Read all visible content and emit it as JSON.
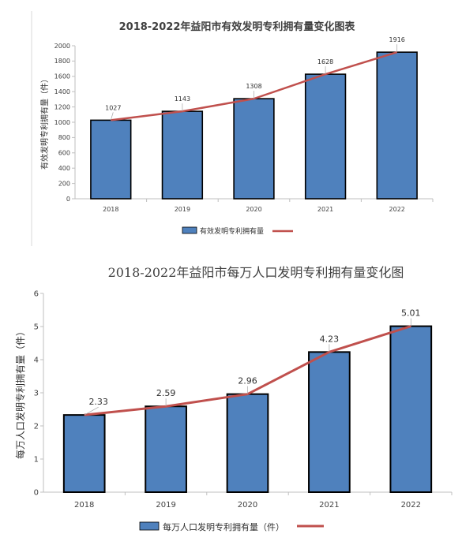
{
  "colors": {
    "bar": "#4f81bd",
    "bar_stroke": "#000000",
    "line": "#c0504d",
    "axis": "#bfbfbf"
  },
  "chart_data": [
    {
      "type": "bar",
      "title": "2018-2022年益阳市有效发明专利拥有量变化图表",
      "ylabel": "有效发明专利拥有量（件）",
      "xlabel": "",
      "categories": [
        "2018",
        "2019",
        "2020",
        "2021",
        "2022"
      ],
      "ylim": [
        0,
        2000
      ],
      "yticks": [
        0,
        200,
        400,
        600,
        800,
        1000,
        1200,
        1400,
        1600,
        1800,
        2000
      ],
      "series": [
        {
          "name": "有效发明专利拥有量",
          "type": "bar",
          "values": [
            1027,
            1143,
            1308,
            1628,
            1916
          ]
        },
        {
          "type": "line",
          "values": [
            1027,
            1143,
            1308,
            1628,
            1916
          ]
        }
      ],
      "data_labels": [
        "1027",
        "1143",
        "1308",
        "1628",
        "1916"
      ],
      "legend": "bottom",
      "grid": false
    },
    {
      "type": "bar",
      "title": "2018-2022年益阳市每万人口发明专利拥有量变化图",
      "ylabel": "每万人口发明专利拥有量（件）",
      "xlabel": "",
      "categories": [
        "2018",
        "2019",
        "2020",
        "2021",
        "2022"
      ],
      "ylim": [
        0,
        6
      ],
      "yticks": [
        0,
        1,
        2,
        3,
        4,
        5,
        6
      ],
      "series": [
        {
          "name": "每万人口发明专利拥有量（件）",
          "type": "bar",
          "values": [
            2.33,
            2.59,
            2.96,
            4.23,
            5.01
          ]
        },
        {
          "type": "line",
          "values": [
            2.33,
            2.59,
            2.96,
            4.23,
            5.01
          ]
        }
      ],
      "data_labels": [
        "2.33",
        "2.59",
        "2.96",
        "4.23",
        "5.01"
      ],
      "legend": "bottom",
      "grid": false
    }
  ]
}
